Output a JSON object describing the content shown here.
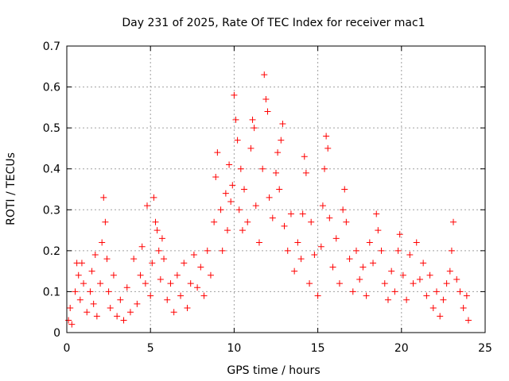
{
  "chart_data": {
    "type": "scatter",
    "title": "Day 231 of 2025, Rate Of TEC Index for receiver mac1",
    "xlabel": "GPS time / hours",
    "ylabel": "ROTI / TECUs",
    "xlim": [
      0,
      25
    ],
    "ylim": [
      0,
      0.7
    ],
    "xticks": [
      "0",
      "5",
      "10",
      "15",
      "20",
      "25"
    ],
    "yticks": [
      "0",
      "0.1",
      "0.2",
      "0.3",
      "0.4",
      "0.5",
      "0.6",
      "0.7"
    ],
    "xtick_values": [
      0,
      5,
      10,
      15,
      20,
      25
    ],
    "ytick_values": [
      0,
      0.1,
      0.2,
      0.3,
      0.4,
      0.5,
      0.6,
      0.7
    ],
    "grid": true,
    "marker": "plus",
    "color": "#ff0000",
    "series": [
      {
        "points": [
          [
            0.1,
            0.03
          ],
          [
            0.2,
            0.06
          ],
          [
            0.3,
            0.02
          ],
          [
            0.5,
            0.1
          ],
          [
            0.6,
            0.17
          ],
          [
            0.7,
            0.14
          ],
          [
            0.8,
            0.08
          ],
          [
            0.9,
            0.17
          ],
          [
            1.0,
            0.12
          ],
          [
            1.2,
            0.05
          ],
          [
            1.4,
            0.1
          ],
          [
            1.5,
            0.15
          ],
          [
            1.6,
            0.07
          ],
          [
            1.7,
            0.19
          ],
          [
            1.8,
            0.04
          ],
          [
            2.0,
            0.12
          ],
          [
            2.1,
            0.22
          ],
          [
            2.2,
            0.33
          ],
          [
            2.3,
            0.27
          ],
          [
            2.4,
            0.18
          ],
          [
            2.5,
            0.1
          ],
          [
            2.6,
            0.06
          ],
          [
            2.8,
            0.14
          ],
          [
            3.0,
            0.04
          ],
          [
            3.2,
            0.08
          ],
          [
            3.4,
            0.03
          ],
          [
            3.6,
            0.11
          ],
          [
            3.8,
            0.05
          ],
          [
            4.0,
            0.18
          ],
          [
            4.2,
            0.07
          ],
          [
            4.4,
            0.14
          ],
          [
            4.5,
            0.21
          ],
          [
            4.7,
            0.12
          ],
          [
            4.8,
            0.31
          ],
          [
            5.0,
            0.09
          ],
          [
            5.1,
            0.17
          ],
          [
            5.2,
            0.33
          ],
          [
            5.3,
            0.27
          ],
          [
            5.4,
            0.25
          ],
          [
            5.5,
            0.2
          ],
          [
            5.6,
            0.13
          ],
          [
            5.7,
            0.23
          ],
          [
            5.8,
            0.18
          ],
          [
            6.0,
            0.08
          ],
          [
            6.2,
            0.12
          ],
          [
            6.4,
            0.05
          ],
          [
            6.6,
            0.14
          ],
          [
            6.8,
            0.09
          ],
          [
            7.0,
            0.17
          ],
          [
            7.2,
            0.06
          ],
          [
            7.4,
            0.12
          ],
          [
            7.6,
            0.19
          ],
          [
            7.8,
            0.11
          ],
          [
            8.0,
            0.16
          ],
          [
            8.2,
            0.09
          ],
          [
            8.4,
            0.2
          ],
          [
            8.6,
            0.14
          ],
          [
            8.8,
            0.27
          ],
          [
            8.9,
            0.38
          ],
          [
            9.0,
            0.44
          ],
          [
            9.2,
            0.3
          ],
          [
            9.3,
            0.2
          ],
          [
            9.5,
            0.34
          ],
          [
            9.6,
            0.25
          ],
          [
            9.7,
            0.41
          ],
          [
            9.8,
            0.32
          ],
          [
            9.9,
            0.36
          ],
          [
            10.0,
            0.58
          ],
          [
            10.1,
            0.52
          ],
          [
            10.2,
            0.47
          ],
          [
            10.3,
            0.3
          ],
          [
            10.4,
            0.4
          ],
          [
            10.5,
            0.25
          ],
          [
            10.6,
            0.35
          ],
          [
            10.8,
            0.27
          ],
          [
            11.0,
            0.45
          ],
          [
            11.1,
            0.52
          ],
          [
            11.2,
            0.5
          ],
          [
            11.3,
            0.31
          ],
          [
            11.5,
            0.22
          ],
          [
            11.7,
            0.4
          ],
          [
            11.8,
            0.63
          ],
          [
            11.9,
            0.57
          ],
          [
            12.0,
            0.54
          ],
          [
            12.1,
            0.33
          ],
          [
            12.3,
            0.28
          ],
          [
            12.5,
            0.39
          ],
          [
            12.6,
            0.44
          ],
          [
            12.7,
            0.35
          ],
          [
            12.8,
            0.47
          ],
          [
            12.9,
            0.51
          ],
          [
            13.0,
            0.26
          ],
          [
            13.2,
            0.2
          ],
          [
            13.4,
            0.29
          ],
          [
            13.6,
            0.15
          ],
          [
            13.8,
            0.22
          ],
          [
            14.0,
            0.18
          ],
          [
            14.1,
            0.29
          ],
          [
            14.2,
            0.43
          ],
          [
            14.3,
            0.39
          ],
          [
            14.5,
            0.12
          ],
          [
            14.6,
            0.27
          ],
          [
            14.8,
            0.19
          ],
          [
            15.0,
            0.09
          ],
          [
            15.2,
            0.21
          ],
          [
            15.3,
            0.31
          ],
          [
            15.4,
            0.4
          ],
          [
            15.5,
            0.48
          ],
          [
            15.6,
            0.45
          ],
          [
            15.7,
            0.28
          ],
          [
            15.9,
            0.16
          ],
          [
            16.1,
            0.23
          ],
          [
            16.3,
            0.12
          ],
          [
            16.5,
            0.3
          ],
          [
            16.6,
            0.35
          ],
          [
            16.7,
            0.27
          ],
          [
            16.9,
            0.18
          ],
          [
            17.1,
            0.1
          ],
          [
            17.3,
            0.2
          ],
          [
            17.5,
            0.13
          ],
          [
            17.7,
            0.16
          ],
          [
            17.9,
            0.09
          ],
          [
            18.1,
            0.22
          ],
          [
            18.3,
            0.17
          ],
          [
            18.5,
            0.29
          ],
          [
            18.6,
            0.25
          ],
          [
            18.8,
            0.2
          ],
          [
            19.0,
            0.12
          ],
          [
            19.2,
            0.08
          ],
          [
            19.4,
            0.15
          ],
          [
            19.6,
            0.1
          ],
          [
            19.8,
            0.2
          ],
          [
            19.9,
            0.24
          ],
          [
            20.1,
            0.14
          ],
          [
            20.3,
            0.08
          ],
          [
            20.5,
            0.19
          ],
          [
            20.7,
            0.12
          ],
          [
            20.9,
            0.22
          ],
          [
            21.1,
            0.13
          ],
          [
            21.3,
            0.17
          ],
          [
            21.5,
            0.09
          ],
          [
            21.7,
            0.14
          ],
          [
            21.9,
            0.06
          ],
          [
            22.1,
            0.1
          ],
          [
            22.3,
            0.04
          ],
          [
            22.5,
            0.08
          ],
          [
            22.7,
            0.12
          ],
          [
            22.9,
            0.15
          ],
          [
            23.0,
            0.2
          ],
          [
            23.1,
            0.27
          ],
          [
            23.3,
            0.13
          ],
          [
            23.5,
            0.1
          ],
          [
            23.7,
            0.06
          ],
          [
            23.9,
            0.09
          ],
          [
            24.0,
            0.03
          ]
        ]
      }
    ]
  }
}
